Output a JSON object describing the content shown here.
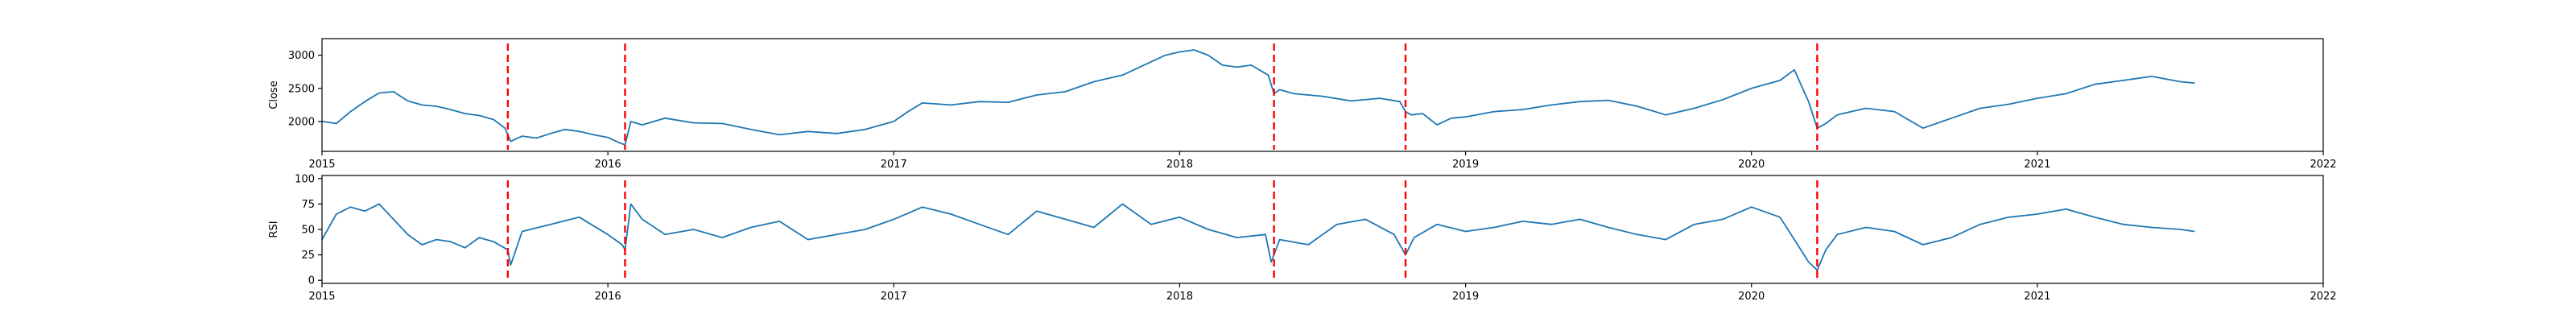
{
  "chart_data": [
    {
      "type": "line",
      "ylabel": "Close",
      "xlim": [
        2015,
        2022
      ],
      "ylim": [
        1550,
        3250
      ],
      "x_ticks": [
        "2015",
        "2016",
        "2017",
        "2018",
        "2019",
        "2020",
        "2021",
        "2022"
      ],
      "y_ticks": [
        2000,
        2500,
        3000
      ],
      "grid": false,
      "event_lines_x": [
        2015.65,
        2016.06,
        2018.33,
        2018.79,
        2020.23
      ],
      "series": [
        {
          "values_x": [
            2015.0,
            2015.05,
            2015.1,
            2015.15,
            2015.2,
            2015.25,
            2015.3,
            2015.35,
            2015.4,
            2015.45,
            2015.5,
            2015.55,
            2015.6,
            2015.64,
            2015.66,
            2015.7,
            2015.75,
            2015.8,
            2015.85,
            2015.9,
            2015.95,
            2016.0,
            2016.04,
            2016.06,
            2016.08,
            2016.12,
            2016.2,
            2016.3,
            2016.4,
            2016.5,
            2016.6,
            2016.7,
            2016.8,
            2016.9,
            2017.0,
            2017.05,
            2017.1,
            2017.2,
            2017.3,
            2017.4,
            2017.5,
            2017.6,
            2017.7,
            2017.8,
            2017.9,
            2017.95,
            2018.0,
            2018.05,
            2018.1,
            2018.15,
            2018.2,
            2018.25,
            2018.31,
            2018.33,
            2018.35,
            2018.4,
            2018.5,
            2018.6,
            2018.7,
            2018.77,
            2018.79,
            2018.81,
            2018.85,
            2018.9,
            2018.95,
            2019.0,
            2019.1,
            2019.2,
            2019.3,
            2019.4,
            2019.5,
            2019.6,
            2019.7,
            2019.8,
            2019.9,
            2020.0,
            2020.05,
            2020.1,
            2020.15,
            2020.2,
            2020.23,
            2020.26,
            2020.3,
            2020.4,
            2020.5,
            2020.6,
            2020.7,
            2020.8,
            2020.9,
            2021.0,
            2021.1,
            2021.2,
            2021.3,
            2021.4,
            2021.5,
            2021.55
          ],
          "values_y": [
            2000,
            1970,
            2150,
            2300,
            2430,
            2450,
            2310,
            2250,
            2230,
            2180,
            2120,
            2090,
            2030,
            1900,
            1700,
            1780,
            1750,
            1820,
            1880,
            1850,
            1800,
            1760,
            1680,
            1650,
            2000,
            1950,
            2050,
            1980,
            1970,
            1880,
            1800,
            1850,
            1820,
            1880,
            2000,
            2150,
            2280,
            2250,
            2300,
            2290,
            2400,
            2450,
            2600,
            2700,
            2900,
            3000,
            3050,
            3080,
            3000,
            2850,
            2820,
            2850,
            2700,
            2420,
            2480,
            2420,
            2380,
            2310,
            2350,
            2300,
            2150,
            2100,
            2120,
            1950,
            2050,
            2070,
            2150,
            2180,
            2250,
            2300,
            2320,
            2230,
            2100,
            2200,
            2330,
            2500,
            2560,
            2620,
            2780,
            2300,
            1900,
            1970,
            2100,
            2200,
            2150,
            1900,
            2050,
            2200,
            2260,
            2350,
            2420,
            2560,
            2620,
            2680,
            2600,
            2580
          ]
        }
      ]
    },
    {
      "type": "line",
      "ylabel": "RSI",
      "xlim": [
        2015,
        2022
      ],
      "ylim": [
        -3,
        103
      ],
      "x_ticks": [
        "2015",
        "2016",
        "2017",
        "2018",
        "2019",
        "2020",
        "2021",
        "2022"
      ],
      "y_ticks": [
        0,
        25,
        50,
        75,
        100
      ],
      "grid": false,
      "event_lines_x": [
        2015.65,
        2016.06,
        2018.33,
        2018.79,
        2020.23
      ],
      "series": [
        {
          "values_x": [
            2015.0,
            2015.05,
            2015.1,
            2015.15,
            2015.2,
            2015.25,
            2015.3,
            2015.35,
            2015.4,
            2015.45,
            2015.5,
            2015.55,
            2015.6,
            2015.65,
            2015.66,
            2015.7,
            2015.8,
            2015.9,
            2016.0,
            2016.05,
            2016.06,
            2016.08,
            2016.12,
            2016.2,
            2016.3,
            2016.4,
            2016.5,
            2016.6,
            2016.7,
            2016.8,
            2016.9,
            2017.0,
            2017.1,
            2017.2,
            2017.3,
            2017.4,
            2017.5,
            2017.6,
            2017.7,
            2017.8,
            2017.9,
            2018.0,
            2018.1,
            2018.2,
            2018.3,
            2018.32,
            2018.35,
            2018.45,
            2018.55,
            2018.65,
            2018.75,
            2018.79,
            2018.82,
            2018.9,
            2019.0,
            2019.1,
            2019.2,
            2019.3,
            2019.4,
            2019.5,
            2019.6,
            2019.7,
            2019.8,
            2019.9,
            2020.0,
            2020.1,
            2020.15,
            2020.2,
            2020.23,
            2020.26,
            2020.3,
            2020.4,
            2020.5,
            2020.6,
            2020.7,
            2020.8,
            2020.9,
            2021.0,
            2021.1,
            2021.2,
            2021.3,
            2021.4,
            2021.5,
            2021.55
          ],
          "values_y": [
            40,
            65,
            72,
            68,
            75,
            60,
            45,
            35,
            40,
            38,
            32,
            42,
            38,
            30,
            15,
            48,
            55,
            62,
            45,
            35,
            30,
            75,
            60,
            45,
            50,
            42,
            52,
            58,
            40,
            45,
            50,
            60,
            72,
            65,
            55,
            45,
            68,
            60,
            52,
            75,
            55,
            62,
            50,
            42,
            45,
            18,
            40,
            35,
            55,
            60,
            45,
            25,
            42,
            55,
            48,
            52,
            58,
            55,
            60,
            52,
            45,
            40,
            55,
            60,
            72,
            62,
            40,
            18,
            10,
            30,
            45,
            52,
            48,
            35,
            42,
            55,
            62,
            65,
            70,
            62,
            55,
            52,
            50,
            48
          ]
        }
      ]
    }
  ]
}
